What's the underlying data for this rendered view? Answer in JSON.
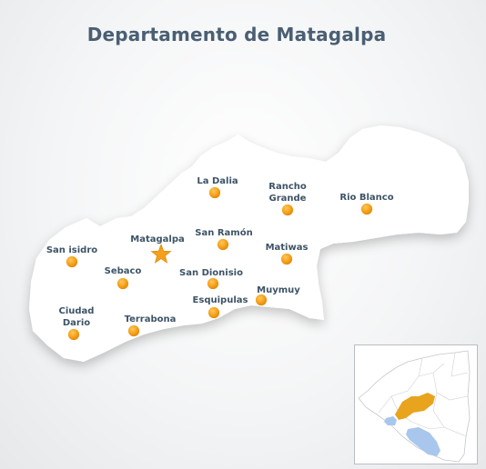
{
  "title": "Departamento de Matagalpa",
  "colors": {
    "title": "#4a5f73",
    "label": "#3d5366",
    "marker": "#f5a01a",
    "marker_dark": "#e08a0a",
    "region": "#ffffff",
    "highlight": "#e8a41c",
    "lake": "#a9c7ec"
  },
  "towns": [
    {
      "name": "La Dalia",
      "icon": "dot-marker"
    },
    {
      "name": "Rancho",
      "name2": "Grande",
      "icon": "dot-marker"
    },
    {
      "name": "Rio Blanco",
      "icon": "dot-marker"
    },
    {
      "name": "San Ramón",
      "icon": "dot-marker"
    },
    {
      "name": "Matagalpa",
      "icon": "star-marker"
    },
    {
      "name": "Matiwas",
      "icon": "dot-marker"
    },
    {
      "name": "San isidro",
      "icon": "dot-marker"
    },
    {
      "name": "Sebaco",
      "icon": "dot-marker"
    },
    {
      "name": "San Dionisio",
      "icon": "dot-marker"
    },
    {
      "name": "Muymuy",
      "icon": "dot-marker"
    },
    {
      "name": "Esquipulas",
      "icon": "dot-marker"
    },
    {
      "name": "Ciudad",
      "name2": "Dario",
      "icon": "dot-marker"
    },
    {
      "name": "Terrabona",
      "icon": "dot-marker"
    }
  ]
}
